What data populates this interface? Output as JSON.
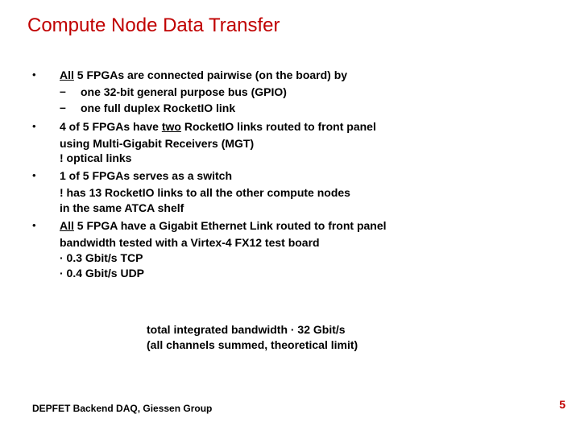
{
  "title": "Compute Node Data Transfer",
  "bullets": [
    {
      "pre": "All",
      "rest": " 5 FPGAs are connected pairwise (on the board) by",
      "subs": [
        "one 32-bit general purpose bus (GPIO)",
        "one full duplex RocketIO link"
      ]
    },
    {
      "pre": "",
      "rest": "4 of 5 FPGAs have ",
      "mid_u": "two",
      "rest2": " RocketIO links routed to front panel",
      "cont": [
        "using Multi-Gigabit Receivers (MGT)",
        "! optical links"
      ]
    },
    {
      "pre": "",
      "rest": "1 of 5 FPGAs serves as a switch",
      "cont": [
        "! has 13 RocketIO links to all the other compute nodes",
        "in the same ATCA shelf"
      ]
    },
    {
      "pre": "All",
      "rest": " 5 FPGA have a Gigabit Ethernet Link routed to front panel",
      "cont": [
        "bandwidth tested with a Virtex-4 FX12 test board",
        "· 0.3 Gbit/s TCP",
        "· 0.4 Gbit/s UDP"
      ]
    }
  ],
  "summary": {
    "line1": "total integrated bandwidth · 32 Gbit/s",
    "line2": "(all channels summed, theoretical limit)"
  },
  "footer": {
    "left": "DEPFET Backend DAQ, Giessen Group",
    "page": "5"
  },
  "colors": {
    "title": "#c00000",
    "page": "#c00000",
    "text": "#000000",
    "bg": "#ffffff"
  }
}
